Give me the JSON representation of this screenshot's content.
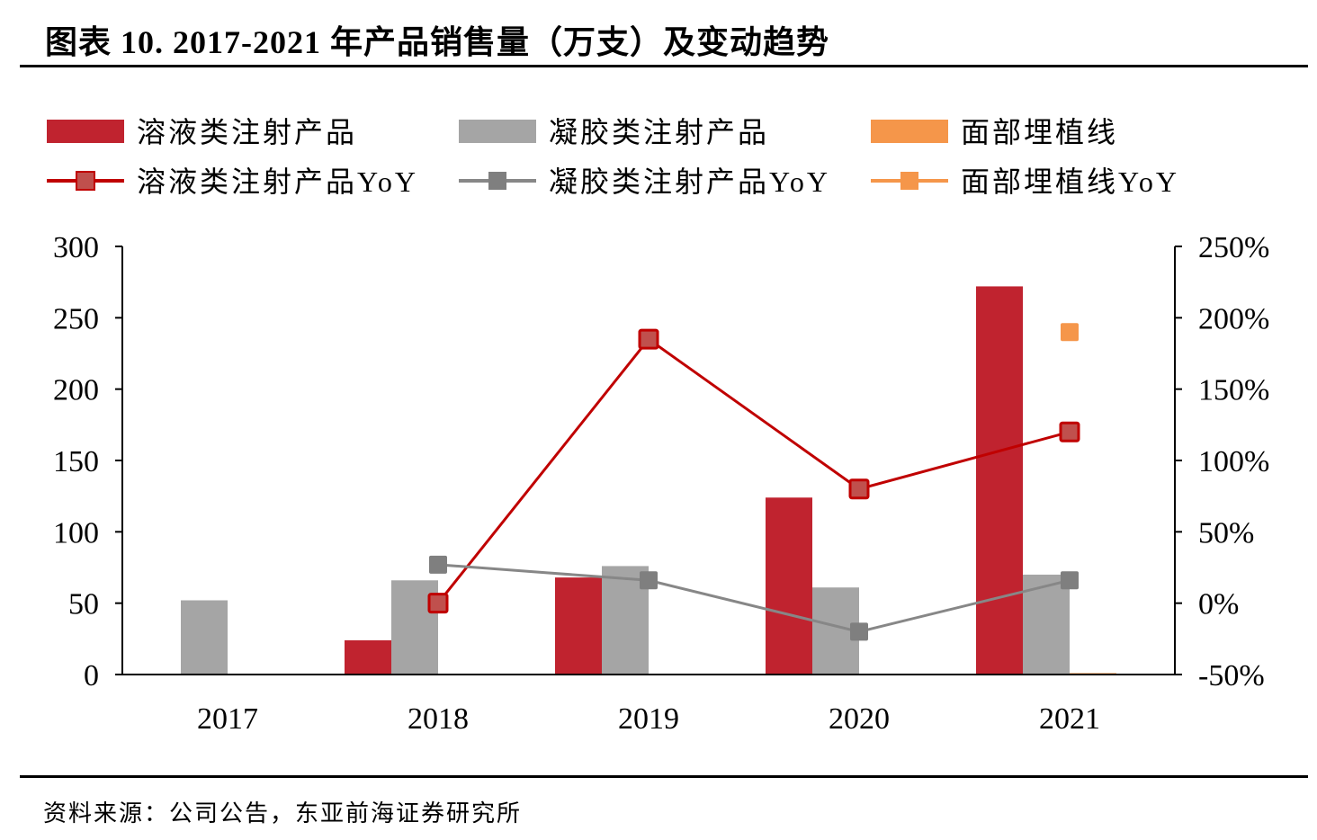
{
  "title": "图表 10. 2017-2021 年产品销售量（万支）及变动趋势",
  "source": "资料来源：公司公告，东亚前海证券研究所",
  "chart_data": {
    "type": "bar+line",
    "categories": [
      "2017",
      "2018",
      "2019",
      "2020",
      "2021"
    ],
    "left_axis": {
      "ylim": [
        0,
        300
      ],
      "ticks": [
        "0",
        "50",
        "100",
        "150",
        "200",
        "250",
        "300"
      ]
    },
    "right_axis": {
      "ylim": [
        -50,
        250
      ],
      "ticks": [
        "-50%",
        "0%",
        "50%",
        "100%",
        "150%",
        "200%",
        "250%"
      ]
    },
    "bar_series": [
      {
        "name": "溶液类注射产品",
        "color": "#c0232f",
        "values": [
          null,
          24,
          68,
          124,
          272
        ]
      },
      {
        "name": "凝胶类注射产品",
        "color": "#a5a5a5",
        "values": [
          52,
          66,
          76,
          61,
          70
        ]
      },
      {
        "name": "面部埋植线",
        "color": "#f5964a",
        "values": [
          null,
          null,
          null,
          null,
          1
        ]
      }
    ],
    "line_series": [
      {
        "name": "溶液类注射产品YoY",
        "color": "#c00000",
        "marker_fill": "#c0504d",
        "values": [
          null,
          0,
          185,
          80,
          120
        ]
      },
      {
        "name": "凝胶类注射产品YoY",
        "color": "#878787",
        "marker_fill": "#7f7f7f",
        "values": [
          null,
          27,
          16,
          -20,
          16
        ]
      },
      {
        "name": "面部埋植线YoY",
        "color": "#f5964a",
        "marker_fill": "#f5964a",
        "values": [
          null,
          null,
          null,
          null,
          190
        ]
      }
    ],
    "legend": "top",
    "grid": false
  }
}
